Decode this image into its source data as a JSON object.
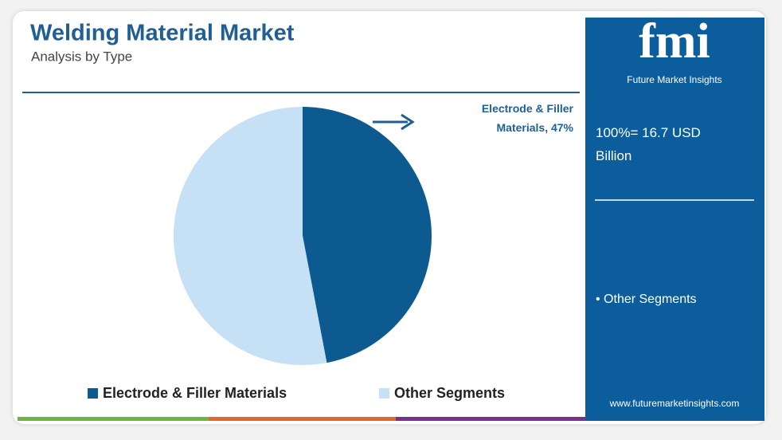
{
  "chart_data": {
    "type": "pie",
    "title": "Welding Material Market",
    "subtitle": "Analysis by Type",
    "categories": [
      "Electrode & Filler Materials",
      "Other Segments"
    ],
    "values": [
      47,
      53
    ],
    "value_labels": [
      "Electrode & Filler Materials, 47%",
      null
    ],
    "colors": [
      "#0d5a91",
      "#c6e1f5"
    ],
    "legend": "bottom"
  },
  "sidebar": {
    "logo": "fmi",
    "logo_name": "Future Market Insights",
    "total": "100%= 16.7 USD Billion",
    "segment": "• Other Segments",
    "url": "www.futuremarketinsights.com"
  }
}
